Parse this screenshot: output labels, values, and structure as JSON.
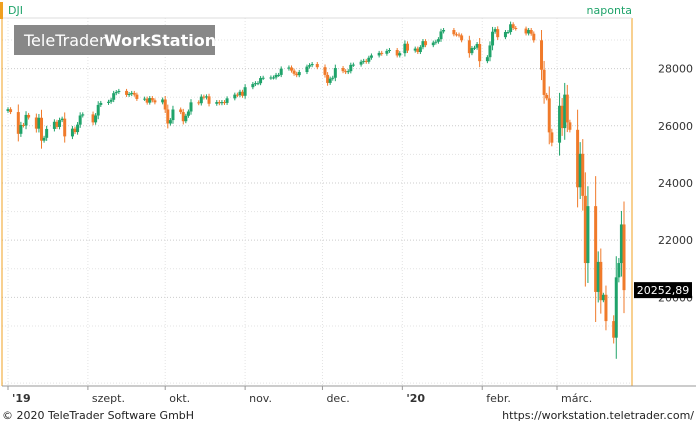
{
  "header": {
    "symbol": "DJI",
    "interval": "naponta",
    "watermark_brand_light": "TeleTrader",
    "watermark_brand_bold": "WorkStation"
  },
  "footer": {
    "copyright": "© 2020 TeleTrader Software GmbH",
    "url": "https://workstation.teletrader.com/"
  },
  "colors": {
    "up": "#1fa36a",
    "down": "#f07a2a",
    "accent": "#f0a020",
    "interval_text": "#1fa36a",
    "grid": "#cccccc"
  },
  "chart_data": {
    "type": "candlestick",
    "title": "DJI",
    "interval": "naponta",
    "last_value": 20252.89,
    "last_value_label": "20252,89",
    "ylim": [
      16900,
      29700
    ],
    "y_ticks": [
      28000,
      26000,
      24000,
      22000,
      20000
    ],
    "x_tick_labels": [
      "'19",
      "szept.",
      "okt.",
      "nov.",
      "dec.",
      "'20",
      "febr.",
      "márc."
    ],
    "x_tick_dates": [
      "2019-08-01",
      "2019-09-01",
      "2019-10-01",
      "2019-11-01",
      "2019-12-01",
      "2020-01-01",
      "2020-02-01",
      "2020-03-01"
    ],
    "x_range": [
      "2019-08-01",
      "2020-03-27"
    ],
    "closes": [
      [
        "2019-08-01",
        26580
      ],
      [
        "2019-08-02",
        26480
      ],
      [
        "2019-08-05",
        25720
      ],
      [
        "2019-08-06",
        26030
      ],
      [
        "2019-08-07",
        26010
      ],
      [
        "2019-08-08",
        26380
      ],
      [
        "2019-08-09",
        26290
      ],
      [
        "2019-08-12",
        25900
      ],
      [
        "2019-08-13",
        26280
      ],
      [
        "2019-08-14",
        25480
      ],
      [
        "2019-08-15",
        25580
      ],
      [
        "2019-08-16",
        25890
      ],
      [
        "2019-08-19",
        26140
      ],
      [
        "2019-08-20",
        25960
      ],
      [
        "2019-08-21",
        26200
      ],
      [
        "2019-08-22",
        26250
      ],
      [
        "2019-08-23",
        25630
      ],
      [
        "2019-08-26",
        25900
      ],
      [
        "2019-08-27",
        25780
      ],
      [
        "2019-08-28",
        26040
      ],
      [
        "2019-08-29",
        26360
      ],
      [
        "2019-08-30",
        26400
      ],
      [
        "2019-09-03",
        26120
      ],
      [
        "2019-09-04",
        26360
      ],
      [
        "2019-09-05",
        26730
      ],
      [
        "2019-09-06",
        26800
      ],
      [
        "2019-09-09",
        26840
      ],
      [
        "2019-09-10",
        26910
      ],
      [
        "2019-09-11",
        27140
      ],
      [
        "2019-09-12",
        27180
      ],
      [
        "2019-09-13",
        27220
      ],
      [
        "2019-09-16",
        27080
      ],
      [
        "2019-09-17",
        27110
      ],
      [
        "2019-09-18",
        27150
      ],
      [
        "2019-09-19",
        27090
      ],
      [
        "2019-09-20",
        26940
      ],
      [
        "2019-09-23",
        26950
      ],
      [
        "2019-09-24",
        26810
      ],
      [
        "2019-09-25",
        26970
      ],
      [
        "2019-09-26",
        26890
      ],
      [
        "2019-09-27",
        26820
      ],
      [
        "2019-09-30",
        26920
      ],
      [
        "2019-10-01",
        26570
      ],
      [
        "2019-10-02",
        26080
      ],
      [
        "2019-10-03",
        26200
      ],
      [
        "2019-10-04",
        26570
      ],
      [
        "2019-10-07",
        26480
      ],
      [
        "2019-10-08",
        26160
      ],
      [
        "2019-10-09",
        26350
      ],
      [
        "2019-10-10",
        26500
      ],
      [
        "2019-10-11",
        26820
      ],
      [
        "2019-10-14",
        26790
      ],
      [
        "2019-10-15",
        27020
      ],
      [
        "2019-10-16",
        26990
      ],
      [
        "2019-10-17",
        27030
      ],
      [
        "2019-10-18",
        26770
      ],
      [
        "2019-10-21",
        26830
      ],
      [
        "2019-10-22",
        26790
      ],
      [
        "2019-10-23",
        26830
      ],
      [
        "2019-10-24",
        26800
      ],
      [
        "2019-10-25",
        26960
      ],
      [
        "2019-10-28",
        27090
      ],
      [
        "2019-10-29",
        27070
      ],
      [
        "2019-10-30",
        27190
      ],
      [
        "2019-10-31",
        27050
      ],
      [
        "2019-11-01",
        27350
      ],
      [
        "2019-11-04",
        27460
      ],
      [
        "2019-11-05",
        27490
      ],
      [
        "2019-11-06",
        27490
      ],
      [
        "2019-11-07",
        27670
      ],
      [
        "2019-11-08",
        27680
      ],
      [
        "2019-11-11",
        27690
      ],
      [
        "2019-11-12",
        27690
      ],
      [
        "2019-11-13",
        27780
      ],
      [
        "2019-11-14",
        27780
      ],
      [
        "2019-11-15",
        28000
      ],
      [
        "2019-11-18",
        28040
      ],
      [
        "2019-11-19",
        27930
      ],
      [
        "2019-11-20",
        27820
      ],
      [
        "2019-11-21",
        27770
      ],
      [
        "2019-11-22",
        27880
      ],
      [
        "2019-11-25",
        28070
      ],
      [
        "2019-11-26",
        28120
      ],
      [
        "2019-11-27",
        28160
      ],
      [
        "2019-11-29",
        28050
      ],
      [
        "2019-12-02",
        27780
      ],
      [
        "2019-12-03",
        27500
      ],
      [
        "2019-12-04",
        27650
      ],
      [
        "2019-12-05",
        27680
      ],
      [
        "2019-12-06",
        28020
      ],
      [
        "2019-12-09",
        27910
      ],
      [
        "2019-12-10",
        27880
      ],
      [
        "2019-12-11",
        27910
      ],
      [
        "2019-12-12",
        28130
      ],
      [
        "2019-12-13",
        28140
      ],
      [
        "2019-12-16",
        28240
      ],
      [
        "2019-12-17",
        28270
      ],
      [
        "2019-12-18",
        28240
      ],
      [
        "2019-12-19",
        28380
      ],
      [
        "2019-12-20",
        28460
      ],
      [
        "2019-12-23",
        28550
      ],
      [
        "2019-12-24",
        28520
      ],
      [
        "2019-12-26",
        28620
      ],
      [
        "2019-12-27",
        28650
      ],
      [
        "2019-12-30",
        28460
      ],
      [
        "2019-12-31",
        28540
      ],
      [
        "2020-01-02",
        28870
      ],
      [
        "2020-01-03",
        28630
      ],
      [
        "2020-01-06",
        28700
      ],
      [
        "2020-01-07",
        28580
      ],
      [
        "2020-01-08",
        28750
      ],
      [
        "2020-01-09",
        28960
      ],
      [
        "2020-01-10",
        28820
      ],
      [
        "2020-01-13",
        28910
      ],
      [
        "2020-01-14",
        28940
      ],
      [
        "2020-01-15",
        29030
      ],
      [
        "2020-01-16",
        29300
      ],
      [
        "2020-01-17",
        29350
      ],
      [
        "2020-01-21",
        29200
      ],
      [
        "2020-01-22",
        29190
      ],
      [
        "2020-01-23",
        29160
      ],
      [
        "2020-01-24",
        28990
      ],
      [
        "2020-01-27",
        28540
      ],
      [
        "2020-01-28",
        28720
      ],
      [
        "2020-01-29",
        28730
      ],
      [
        "2020-01-30",
        28860
      ],
      [
        "2020-01-31",
        28260
      ],
      [
        "2020-02-03",
        28400
      ],
      [
        "2020-02-04",
        28810
      ],
      [
        "2020-02-05",
        29290
      ],
      [
        "2020-02-06",
        29380
      ],
      [
        "2020-02-07",
        29100
      ],
      [
        "2020-02-10",
        29280
      ],
      [
        "2020-02-11",
        29280
      ],
      [
        "2020-02-12",
        29550
      ],
      [
        "2020-02-13",
        29420
      ],
      [
        "2020-02-14",
        29400
      ],
      [
        "2020-02-18",
        29230
      ],
      [
        "2020-02-19",
        29350
      ],
      [
        "2020-02-20",
        29220
      ],
      [
        "2020-02-21",
        28990
      ],
      [
        "2020-02-24",
        27960
      ],
      [
        "2020-02-25",
        27080
      ],
      [
        "2020-02-26",
        26960
      ],
      [
        "2020-02-27",
        25770
      ],
      [
        "2020-02-28",
        25410
      ],
      [
        "2020-03-02",
        26700
      ],
      [
        "2020-03-03",
        25920
      ],
      [
        "2020-03-04",
        27090
      ],
      [
        "2020-03-05",
        26120
      ],
      [
        "2020-03-06",
        25860
      ],
      [
        "2020-03-09",
        23850
      ],
      [
        "2020-03-10",
        25020
      ],
      [
        "2020-03-11",
        23550
      ],
      [
        "2020-03-12",
        21200
      ],
      [
        "2020-03-13",
        23190
      ],
      [
        "2020-03-16",
        20190
      ],
      [
        "2020-03-17",
        21240
      ],
      [
        "2020-03-18",
        19900
      ],
      [
        "2020-03-19",
        20090
      ],
      [
        "2020-03-20",
        19170
      ],
      [
        "2020-03-23",
        18590
      ],
      [
        "2020-03-24",
        20700
      ],
      [
        "2020-03-25",
        21200
      ],
      [
        "2020-03-26",
        22550
      ],
      [
        "2020-03-27",
        20252.89
      ]
    ]
  }
}
